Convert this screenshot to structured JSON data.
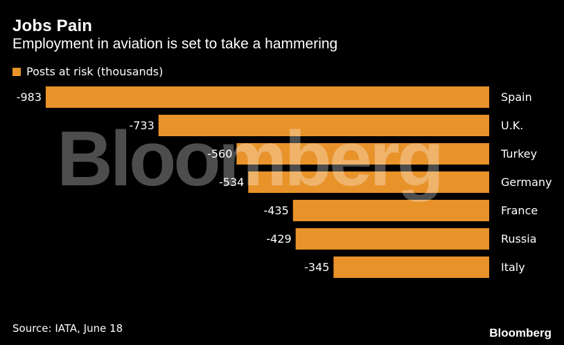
{
  "title": "Jobs Pain",
  "subtitle": "Employment in aviation is set to take a hammering",
  "legend": {
    "label": "Posts at risk (thousands)",
    "color": "#e8922a"
  },
  "source": "Source: IATA, June 18",
  "brand": "Bloomberg",
  "watermark": "Bloomberg",
  "chart_data": {
    "type": "bar",
    "orientation": "horizontal",
    "categories": [
      "Spain",
      "U.K.",
      "Turkey",
      "Germany",
      "France",
      "Russia",
      "Italy"
    ],
    "series": [
      {
        "name": "Posts at risk (thousands)",
        "values": [
          -983,
          -733,
          -560,
          -534,
          -435,
          -429,
          -345
        ]
      }
    ],
    "data_labels": [
      "-983",
      "-733",
      "-560",
      "-534",
      "-435",
      "-429",
      "-345"
    ],
    "xlim": [
      -983,
      0
    ],
    "grid": false,
    "legend_position": "top-left",
    "colors": {
      "bar": "#e8922a",
      "background": "#000000",
      "text": "#ffffff"
    }
  }
}
